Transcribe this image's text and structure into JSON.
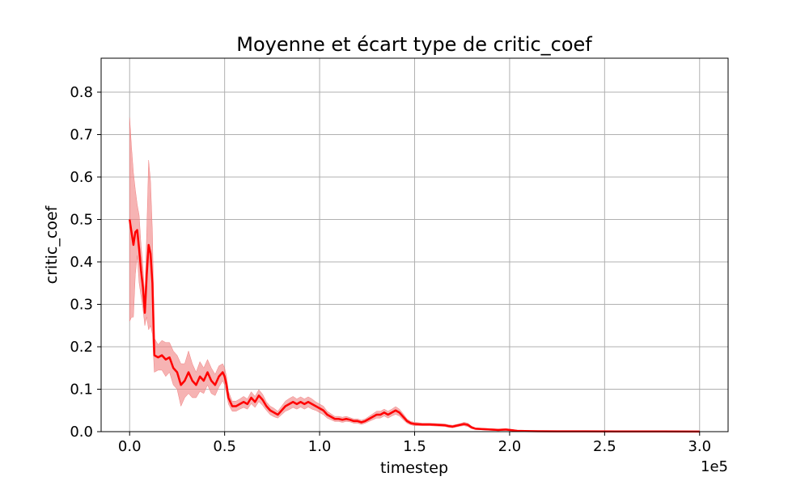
{
  "chart_data": {
    "type": "line",
    "title": "Moyenne et écart type de critic_coef",
    "xlabel": "timestep",
    "ylabel": "critic_coef",
    "x_offset_label": "1e5",
    "xlim": [
      -15000,
      315000
    ],
    "ylim": [
      0,
      0.88
    ],
    "x_ticks": [
      0,
      50000,
      100000,
      150000,
      200000,
      250000,
      300000
    ],
    "x_tick_labels": [
      "0.0",
      "0.5",
      "1.0",
      "1.5",
      "2.0",
      "2.5",
      "3.0"
    ],
    "y_ticks": [
      0,
      0.1,
      0.2,
      0.3,
      0.4,
      0.5,
      0.6,
      0.7,
      0.8
    ],
    "y_tick_labels": [
      "0.0",
      "0.1",
      "0.2",
      "0.3",
      "0.4",
      "0.5",
      "0.6",
      "0.7",
      "0.8"
    ],
    "grid": true,
    "series": [
      {
        "line_color": "#ff0000",
        "band_color": "#f08080",
        "points": [
          [
            0,
            0.5
          ],
          [
            1000,
            0.47
          ],
          [
            2000,
            0.44
          ],
          [
            3000,
            0.47
          ],
          [
            4000,
            0.475
          ],
          [
            5000,
            0.43
          ],
          [
            6000,
            0.38
          ],
          [
            7000,
            0.34
          ],
          [
            8000,
            0.28
          ],
          [
            9000,
            0.37
          ],
          [
            10000,
            0.44
          ],
          [
            11000,
            0.42
          ],
          [
            12000,
            0.35
          ],
          [
            13000,
            0.18
          ],
          [
            15000,
            0.175
          ],
          [
            17000,
            0.18
          ],
          [
            19000,
            0.17
          ],
          [
            21000,
            0.175
          ],
          [
            23000,
            0.15
          ],
          [
            25000,
            0.14
          ],
          [
            27000,
            0.11
          ],
          [
            29000,
            0.12
          ],
          [
            31000,
            0.14
          ],
          [
            33000,
            0.12
          ],
          [
            35000,
            0.11
          ],
          [
            37000,
            0.13
          ],
          [
            39000,
            0.12
          ],
          [
            41000,
            0.14
          ],
          [
            43000,
            0.12
          ],
          [
            45000,
            0.11
          ],
          [
            47000,
            0.13
          ],
          [
            49000,
            0.14
          ],
          [
            50000,
            0.13
          ],
          [
            51000,
            0.11
          ],
          [
            52000,
            0.08
          ],
          [
            54000,
            0.06
          ],
          [
            56000,
            0.06
          ],
          [
            58000,
            0.065
          ],
          [
            60000,
            0.07
          ],
          [
            62000,
            0.065
          ],
          [
            64000,
            0.08
          ],
          [
            66000,
            0.07
          ],
          [
            68000,
            0.085
          ],
          [
            70000,
            0.075
          ],
          [
            72000,
            0.06
          ],
          [
            74000,
            0.05
          ],
          [
            76000,
            0.045
          ],
          [
            78000,
            0.04
          ],
          [
            80000,
            0.05
          ],
          [
            82000,
            0.06
          ],
          [
            84000,
            0.065
          ],
          [
            86000,
            0.07
          ],
          [
            88000,
            0.065
          ],
          [
            90000,
            0.07
          ],
          [
            92000,
            0.065
          ],
          [
            94000,
            0.07
          ],
          [
            96000,
            0.065
          ],
          [
            98000,
            0.06
          ],
          [
            100000,
            0.055
          ],
          [
            102000,
            0.05
          ],
          [
            104000,
            0.04
          ],
          [
            106000,
            0.035
          ],
          [
            108000,
            0.03
          ],
          [
            110000,
            0.03
          ],
          [
            112000,
            0.028
          ],
          [
            114000,
            0.03
          ],
          [
            116000,
            0.028
          ],
          [
            118000,
            0.025
          ],
          [
            120000,
            0.025
          ],
          [
            122000,
            0.022
          ],
          [
            124000,
            0.025
          ],
          [
            126000,
            0.03
          ],
          [
            128000,
            0.035
          ],
          [
            130000,
            0.04
          ],
          [
            132000,
            0.04
          ],
          [
            134000,
            0.045
          ],
          [
            136000,
            0.04
          ],
          [
            138000,
            0.045
          ],
          [
            140000,
            0.05
          ],
          [
            142000,
            0.045
          ],
          [
            144000,
            0.035
          ],
          [
            146000,
            0.025
          ],
          [
            148000,
            0.02
          ],
          [
            150000,
            0.018
          ],
          [
            154000,
            0.017
          ],
          [
            158000,
            0.017
          ],
          [
            162000,
            0.016
          ],
          [
            166000,
            0.015
          ],
          [
            168000,
            0.013
          ],
          [
            170000,
            0.012
          ],
          [
            172000,
            0.014
          ],
          [
            174000,
            0.016
          ],
          [
            176000,
            0.018
          ],
          [
            178000,
            0.016
          ],
          [
            180000,
            0.01
          ],
          [
            182000,
            0.007
          ],
          [
            186000,
            0.006
          ],
          [
            190000,
            0.005
          ],
          [
            194000,
            0.004
          ],
          [
            198000,
            0.005
          ],
          [
            200000,
            0.004
          ],
          [
            202000,
            0.003
          ],
          [
            204000,
            0.002
          ],
          [
            208000,
            0.0015
          ],
          [
            215000,
            0.001
          ],
          [
            225000,
            0.0008
          ],
          [
            240000,
            0.0006
          ],
          [
            260000,
            0.0005
          ],
          [
            280000,
            0.0004
          ],
          [
            300000,
            0.0003
          ]
        ],
        "std": [
          [
            0,
            0.24
          ],
          [
            1000,
            0.2
          ],
          [
            2000,
            0.17
          ],
          [
            3000,
            0.1
          ],
          [
            4000,
            0.06
          ],
          [
            5000,
            0.08
          ],
          [
            6000,
            0.06
          ],
          [
            7000,
            0.05
          ],
          [
            8000,
            0.03
          ],
          [
            9000,
            0.1
          ],
          [
            10000,
            0.2
          ],
          [
            11000,
            0.17
          ],
          [
            12000,
            0.12
          ],
          [
            13000,
            0.04
          ],
          [
            15000,
            0.03
          ],
          [
            17000,
            0.035
          ],
          [
            19000,
            0.04
          ],
          [
            21000,
            0.035
          ],
          [
            23000,
            0.04
          ],
          [
            25000,
            0.04
          ],
          [
            27000,
            0.05
          ],
          [
            29000,
            0.04
          ],
          [
            31000,
            0.05
          ],
          [
            33000,
            0.04
          ],
          [
            35000,
            0.03
          ],
          [
            37000,
            0.035
          ],
          [
            39000,
            0.03
          ],
          [
            41000,
            0.03
          ],
          [
            43000,
            0.03
          ],
          [
            45000,
            0.025
          ],
          [
            47000,
            0.025
          ],
          [
            49000,
            0.02
          ],
          [
            50000,
            0.02
          ],
          [
            51000,
            0.02
          ],
          [
            52000,
            0.015
          ],
          [
            54000,
            0.012
          ],
          [
            56000,
            0.012
          ],
          [
            58000,
            0.012
          ],
          [
            60000,
            0.013
          ],
          [
            62000,
            0.012
          ],
          [
            64000,
            0.014
          ],
          [
            66000,
            0.013
          ],
          [
            68000,
            0.014
          ],
          [
            70000,
            0.013
          ],
          [
            72000,
            0.01
          ],
          [
            74000,
            0.01
          ],
          [
            76000,
            0.01
          ],
          [
            78000,
            0.008
          ],
          [
            80000,
            0.01
          ],
          [
            82000,
            0.012
          ],
          [
            84000,
            0.013
          ],
          [
            86000,
            0.013
          ],
          [
            88000,
            0.012
          ],
          [
            90000,
            0.012
          ],
          [
            92000,
            0.012
          ],
          [
            94000,
            0.012
          ],
          [
            96000,
            0.012
          ],
          [
            98000,
            0.01
          ],
          [
            100000,
            0.01
          ],
          [
            102000,
            0.01
          ],
          [
            104000,
            0.008
          ],
          [
            106000,
            0.007
          ],
          [
            108000,
            0.006
          ],
          [
            110000,
            0.006
          ],
          [
            112000,
            0.006
          ],
          [
            114000,
            0.006
          ],
          [
            116000,
            0.005
          ],
          [
            118000,
            0.005
          ],
          [
            120000,
            0.005
          ],
          [
            122000,
            0.005
          ],
          [
            124000,
            0.005
          ],
          [
            126000,
            0.006
          ],
          [
            128000,
            0.007
          ],
          [
            130000,
            0.008
          ],
          [
            132000,
            0.008
          ],
          [
            134000,
            0.008
          ],
          [
            136000,
            0.008
          ],
          [
            138000,
            0.008
          ],
          [
            140000,
            0.009
          ],
          [
            142000,
            0.008
          ],
          [
            144000,
            0.007
          ],
          [
            146000,
            0.005
          ],
          [
            148000,
            0.004
          ],
          [
            150000,
            0.004
          ],
          [
            154000,
            0.003
          ],
          [
            158000,
            0.003
          ],
          [
            162000,
            0.003
          ],
          [
            166000,
            0.003
          ],
          [
            168000,
            0.003
          ],
          [
            170000,
            0.003
          ],
          [
            172000,
            0.003
          ],
          [
            174000,
            0.003
          ],
          [
            176000,
            0.004
          ],
          [
            178000,
            0.004
          ],
          [
            180000,
            0.003
          ],
          [
            182000,
            0.002
          ],
          [
            186000,
            0.002
          ],
          [
            190000,
            0.002
          ],
          [
            194000,
            0.002
          ],
          [
            198000,
            0.002
          ],
          [
            200000,
            0.002
          ],
          [
            202000,
            0.001
          ],
          [
            204000,
            0.001
          ],
          [
            208000,
            0.001
          ],
          [
            215000,
            0.0005
          ],
          [
            225000,
            0.0004
          ],
          [
            240000,
            0.0003
          ],
          [
            260000,
            0.0003
          ],
          [
            280000,
            0.0002
          ],
          [
            300000,
            0.0002
          ]
        ]
      }
    ]
  }
}
